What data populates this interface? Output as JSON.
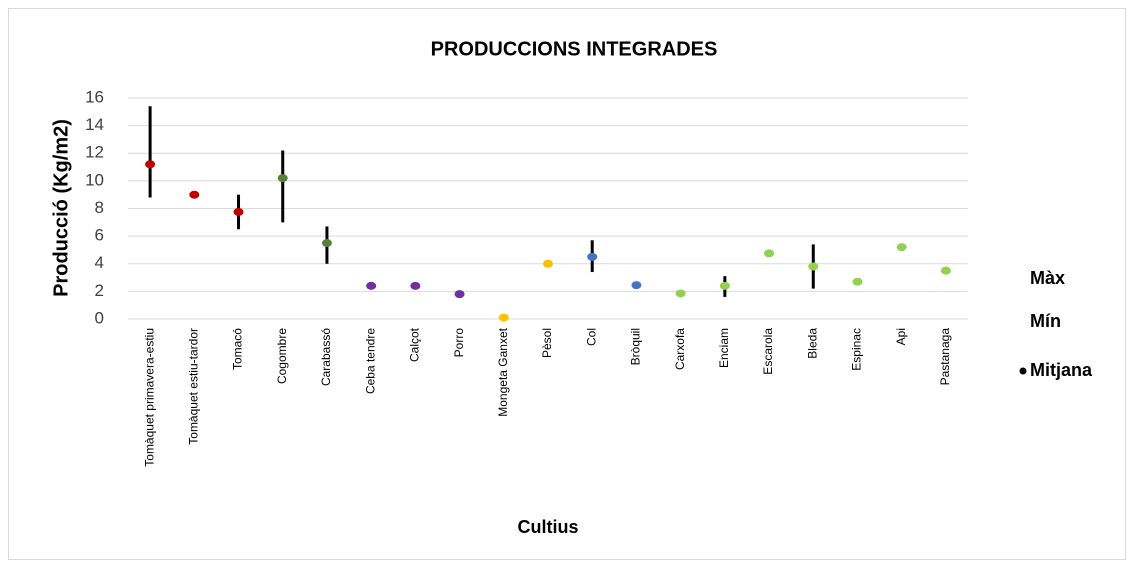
{
  "chart_data": {
    "type": "high-low-mean",
    "title": "PRODUCCIONS INTEGRADES",
    "x_label": "Cultius",
    "y_label": "Producció (Kg/m2)",
    "categories": [
      "Tomàquet primavera-estiu",
      "Tomàquet estiu-tardor",
      "Tomacó",
      "Cogombre",
      "Carabassó",
      "Ceba tendre",
      "Calçot",
      "Porro",
      "Mongeta Ganxet",
      "Pèsol",
      "Col",
      "Bròquil",
      "Carxofa",
      "Enciam",
      "Escarola",
      "Bleda",
      "Espinac",
      "Api",
      "Pastanaga"
    ],
    "series": [
      {
        "name": "Màx",
        "color": "#000000",
        "values": [
          15.4,
          null,
          9.0,
          12.2,
          6.7,
          null,
          null,
          null,
          null,
          null,
          5.7,
          null,
          null,
          3.1,
          null,
          5.4,
          null,
          null,
          null
        ]
      },
      {
        "name": "Mín",
        "color": "#000000",
        "values": [
          8.8,
          null,
          6.5,
          7.0,
          4.0,
          null,
          null,
          null,
          null,
          null,
          3.4,
          null,
          null,
          1.6,
          null,
          2.2,
          null,
          null,
          null
        ]
      },
      {
        "name": "Mitjana",
        "color": "#000000",
        "marker": true,
        "values": [
          11.2,
          9.0,
          7.75,
          10.2,
          5.5,
          2.4,
          2.4,
          1.8,
          0.1,
          4.0,
          4.5,
          2.45,
          1.85,
          2.4,
          4.75,
          3.8,
          2.7,
          5.2,
          3.5
        ],
        "point_colors": [
          "#c00000",
          "#c00000",
          "#c00000",
          "#548235",
          "#548235",
          "#7030a0",
          "#7030a0",
          "#7030a0",
          "#ffc000",
          "#ffc000",
          "#4472c4",
          "#4472c4",
          "#92d050",
          "#92d050",
          "#92d050",
          "#92d050",
          "#92d050",
          "#92d050",
          "#92d050"
        ]
      }
    ],
    "ylim": [
      0,
      16
    ],
    "yticks": [
      0,
      2,
      4,
      6,
      8,
      10,
      12,
      14,
      16
    ],
    "grid": true,
    "legend": "right"
  }
}
